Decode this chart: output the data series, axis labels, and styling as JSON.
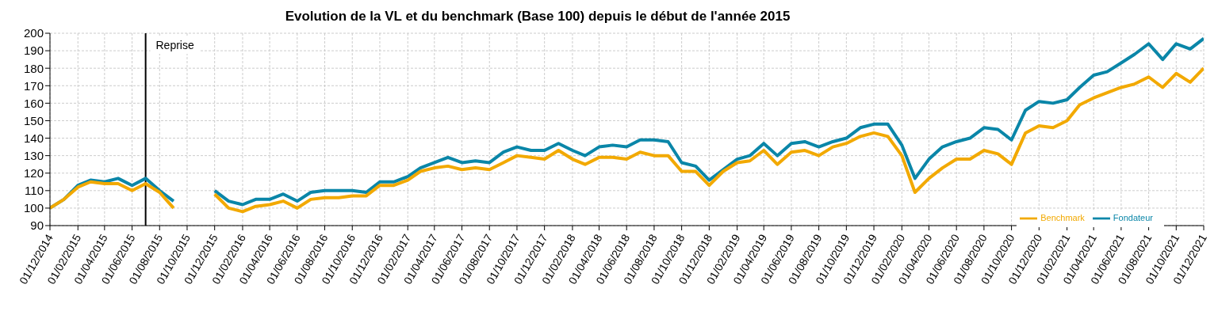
{
  "chart_data": {
    "type": "line",
    "title": "Evolution de la VL et du benchmark (Base 100) depuis le début de l'année 2015",
    "x": [
      "2014-12",
      "2015-01",
      "2015-02",
      "2015-03",
      "2015-04",
      "2015-05",
      "2015-06",
      "2015-07",
      "2015-08",
      "2015-09",
      "2015-10",
      "2015-11",
      "2015-12",
      "2016-01",
      "2016-02",
      "2016-03",
      "2016-04",
      "2016-05",
      "2016-06",
      "2016-07",
      "2016-08",
      "2016-09",
      "2016-10",
      "2016-11",
      "2016-12",
      "2017-01",
      "2017-02",
      "2017-03",
      "2017-04",
      "2017-05",
      "2017-06",
      "2017-07",
      "2017-08",
      "2017-09",
      "2017-10",
      "2017-11",
      "2017-12",
      "2018-01",
      "2018-02",
      "2018-03",
      "2018-04",
      "2018-05",
      "2018-06",
      "2018-07",
      "2018-08",
      "2018-09",
      "2018-10",
      "2018-11",
      "2018-12",
      "2019-01",
      "2019-02",
      "2019-03",
      "2019-04",
      "2019-05",
      "2019-06",
      "2019-07",
      "2019-08",
      "2019-09",
      "2019-10",
      "2019-11",
      "2019-12",
      "2020-01",
      "2020-02",
      "2020-03",
      "2020-04",
      "2020-05",
      "2020-06",
      "2020-07",
      "2020-08",
      "2020-09",
      "2020-10",
      "2020-11",
      "2020-12",
      "2021-01",
      "2021-02",
      "2021-03",
      "2021-04",
      "2021-05",
      "2021-06",
      "2021-07",
      "2021-08",
      "2021-09",
      "2021-10",
      "2021-11",
      "2021-12"
    ],
    "series": [
      {
        "name": "Fondateur",
        "color": "#0a86a8",
        "values": [
          100,
          105,
          113,
          116,
          115,
          117,
          113,
          117,
          110,
          104,
          null,
          null,
          110,
          104,
          102,
          105,
          105,
          108,
          104,
          109,
          110,
          110,
          110,
          109,
          115,
          115,
          118,
          123,
          126,
          129,
          126,
          127,
          126,
          132,
          135,
          133,
          133,
          137,
          133,
          130,
          135,
          136,
          135,
          139,
          139,
          138,
          126,
          124,
          116,
          122,
          128,
          130,
          137,
          130,
          137,
          138,
          135,
          138,
          140,
          146,
          148,
          148,
          136,
          117,
          128,
          135,
          138,
          140,
          146,
          145,
          139,
          156,
          161,
          160,
          162,
          169,
          176,
          178,
          183,
          188,
          194,
          185,
          194,
          191,
          197
        ]
      },
      {
        "name": "Benchmark",
        "color": "#f2a900",
        "values": [
          100,
          105,
          112,
          115,
          114,
          114,
          110,
          114,
          109,
          100,
          null,
          null,
          108,
          100,
          98,
          101,
          102,
          104,
          100,
          105,
          106,
          106,
          107,
          107,
          113,
          113,
          116,
          121,
          123,
          124,
          122,
          123,
          122,
          126,
          130,
          129,
          128,
          133,
          128,
          125,
          129,
          129,
          128,
          132,
          130,
          130,
          121,
          121,
          113,
          121,
          126,
          127,
          133,
          125,
          132,
          133,
          130,
          135,
          137,
          141,
          143,
          141,
          130,
          109,
          117,
          123,
          128,
          128,
          133,
          131,
          125,
          143,
          147,
          146,
          150,
          159,
          163,
          166,
          169,
          171,
          175,
          169,
          177,
          172,
          180
        ]
      }
    ],
    "xlim": [
      "2014-12",
      "2021-12"
    ],
    "xticks": [
      {
        "value": "2014-12",
        "label": "01/12/2014"
      },
      {
        "value": "2015-02",
        "label": "01/02/2015"
      },
      {
        "value": "2015-04",
        "label": "01/04/2015"
      },
      {
        "value": "2015-06",
        "label": "01/06/2015"
      },
      {
        "value": "2015-08",
        "label": "01/08/2015"
      },
      {
        "value": "2015-10",
        "label": "01/10/2015"
      },
      {
        "value": "2015-12",
        "label": "01/12/2015"
      },
      {
        "value": "2016-02",
        "label": "01/02/2016"
      },
      {
        "value": "2016-04",
        "label": "01/04/2016"
      },
      {
        "value": "2016-06",
        "label": "01/06/2016"
      },
      {
        "value": "2016-08",
        "label": "01/08/2016"
      },
      {
        "value": "2016-10",
        "label": "01/10/2016"
      },
      {
        "value": "2016-12",
        "label": "01/12/2016"
      },
      {
        "value": "2017-02",
        "label": "01/02/2017"
      },
      {
        "value": "2017-04",
        "label": "01/04/2017"
      },
      {
        "value": "2017-06",
        "label": "01/06/2017"
      },
      {
        "value": "2017-08",
        "label": "01/08/2017"
      },
      {
        "value": "2017-10",
        "label": "01/10/2017"
      },
      {
        "value": "2017-12",
        "label": "01/12/2017"
      },
      {
        "value": "2018-02",
        "label": "01/02/2018"
      },
      {
        "value": "2018-04",
        "label": "01/04/2018"
      },
      {
        "value": "2018-06",
        "label": "01/06/2018"
      },
      {
        "value": "2018-08",
        "label": "01/08/2018"
      },
      {
        "value": "2018-10",
        "label": "01/10/2018"
      },
      {
        "value": "2018-12",
        "label": "01/12/2018"
      },
      {
        "value": "2019-02",
        "label": "01/02/2019"
      },
      {
        "value": "2019-04",
        "label": "01/04/2019"
      },
      {
        "value": "2019-06",
        "label": "01/06/2019"
      },
      {
        "value": "2019-08",
        "label": "01/08/2019"
      },
      {
        "value": "2019-10",
        "label": "01/10/2019"
      },
      {
        "value": "2019-12",
        "label": "01/12/2019"
      },
      {
        "value": "2020-02",
        "label": "01/02/2020"
      },
      {
        "value": "2020-04",
        "label": "01/04/2020"
      },
      {
        "value": "2020-06",
        "label": "01/06/2020"
      },
      {
        "value": "2020-08",
        "label": "01/08/2020"
      },
      {
        "value": "2020-10",
        "label": "01/10/2020"
      },
      {
        "value": "2020-12",
        "label": "01/12/2020"
      },
      {
        "value": "2021-02",
        "label": "01/02/2021"
      },
      {
        "value": "2021-04",
        "label": "01/04/2021"
      },
      {
        "value": "2021-06",
        "label": "01/06/2021"
      },
      {
        "value": "2021-08",
        "label": "01/08/2021"
      },
      {
        "value": "2021-10",
        "label": "01/10/2021"
      },
      {
        "value": "2021-12",
        "label": "01/12/2021"
      }
    ],
    "ylim": [
      90,
      200
    ],
    "yticks": [
      90,
      100,
      110,
      120,
      130,
      140,
      150,
      160,
      170,
      180,
      190,
      200
    ],
    "ref_lines": [
      {
        "axis": "x",
        "value": "2015-07",
        "label": "Reprise",
        "color": "#000000"
      }
    ],
    "grid": true,
    "legend": "bottom right"
  }
}
